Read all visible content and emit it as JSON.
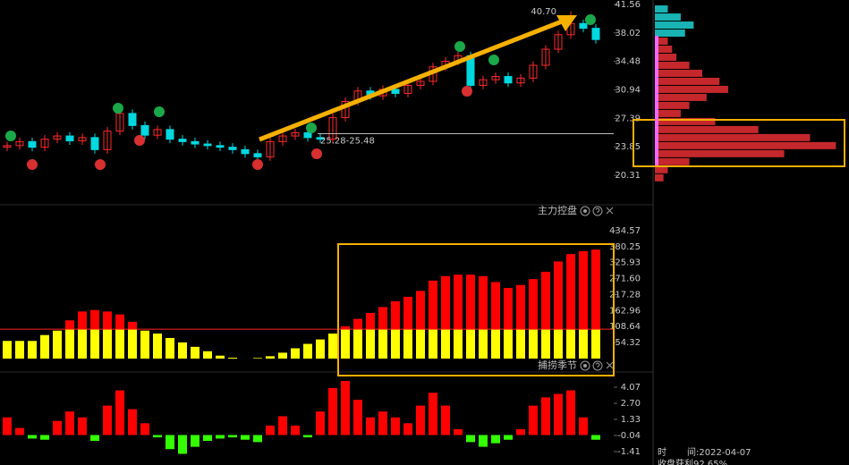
{
  "chart_data": [
    {
      "type": "candlestick",
      "open": [
        23.8,
        24.0,
        24.5,
        23.8,
        24.8,
        25.2,
        24.6,
        25.0,
        23.5,
        25.8,
        28.0,
        26.5,
        25.3,
        26.0,
        24.8,
        24.5,
        24.2,
        24.0,
        23.8,
        23.5,
        23.0,
        22.6,
        24.5,
        25.2,
        25.6,
        25.0,
        24.8,
        27.5,
        29.5,
        30.8,
        30.2,
        31.0,
        30.5,
        31.5,
        32.0,
        33.8,
        34.5,
        35.2,
        31.5,
        32.2,
        32.6,
        31.8,
        32.4,
        34.0,
        36.0,
        37.8,
        39.2,
        38.6
      ],
      "high": [
        24.5,
        25.0,
        25.0,
        25.3,
        25.7,
        25.7,
        25.5,
        25.5,
        26.3,
        28.5,
        28.5,
        27.0,
        26.5,
        26.5,
        25.3,
        25.0,
        24.7,
        24.5,
        24.3,
        24.0,
        23.5,
        25.0,
        25.7,
        26.1,
        26.1,
        25.5,
        28.0,
        30.0,
        31.3,
        31.3,
        31.5,
        31.5,
        32.0,
        32.5,
        34.3,
        35.0,
        35.7,
        35.7,
        32.7,
        33.1,
        33.1,
        32.9,
        34.5,
        36.5,
        38.3,
        40.7,
        39.7,
        39.1
      ],
      "low": [
        23.3,
        23.5,
        23.3,
        23.3,
        24.3,
        24.1,
        24.1,
        23.0,
        23.0,
        25.3,
        26.0,
        24.8,
        24.8,
        24.3,
        24.0,
        23.7,
        23.5,
        23.3,
        23.0,
        22.5,
        22.1,
        22.1,
        24.0,
        24.7,
        24.5,
        24.3,
        24.3,
        27.0,
        29.0,
        29.7,
        29.7,
        30.0,
        30.0,
        31.0,
        31.5,
        33.3,
        34.0,
        31.0,
        31.0,
        31.7,
        31.3,
        31.3,
        31.9,
        33.5,
        35.5,
        37.3,
        38.1,
        36.7
      ],
      "close": [
        24.0,
        24.5,
        23.8,
        24.8,
        25.2,
        24.6,
        25.0,
        23.5,
        25.8,
        28.0,
        26.5,
        25.3,
        26.0,
        24.8,
        24.5,
        24.2,
        24.0,
        23.8,
        23.5,
        23.0,
        22.6,
        24.5,
        25.2,
        25.6,
        25.0,
        24.8,
        27.5,
        29.5,
        30.8,
        30.2,
        31.0,
        30.5,
        31.5,
        32.0,
        33.8,
        34.5,
        35.2,
        31.5,
        32.2,
        32.6,
        31.8,
        32.4,
        34.0,
        36.0,
        37.8,
        39.2,
        38.6,
        37.2
      ],
      "up_color": "#ff2a2a",
      "down_color": "#00d8e0",
      "ylim": [
        16.75,
        42.12
      ],
      "yticks": [
        41.56,
        38.02,
        34.48,
        30.94,
        27.39,
        23.85,
        20.31
      ],
      "annotations": [
        {
          "text": "40.70",
          "value": 40.7
        },
        {
          "text": "25.28-25.48",
          "value": 25.48
        }
      ]
    },
    {
      "type": "hbar",
      "ylim": [
        16.75,
        42.12
      ],
      "xlim": [
        0,
        220
      ],
      "series": [
        {
          "color": "#19b3b3",
          "prices": [
            41,
            40,
            39,
            38
          ],
          "values": [
            15,
            30,
            45,
            35
          ]
        },
        {
          "color": "#c4282c",
          "prices": [
            37,
            36,
            35,
            34,
            33,
            32,
            31,
            30,
            29,
            28,
            27,
            26,
            25,
            24,
            23,
            22,
            21,
            20
          ],
          "values": [
            15,
            20,
            25,
            40,
            55,
            75,
            85,
            60,
            40,
            30,
            70,
            120,
            180,
            210,
            150,
            40,
            15,
            10
          ]
        }
      ]
    },
    {
      "type": "stacked_bar",
      "title": "主力控盘",
      "series": [
        {
          "color": "#ffff00",
          "values": [
            60,
            60,
            60,
            80,
            95,
            100,
            100,
            100,
            100,
            100,
            100,
            95,
            85,
            70,
            55,
            40,
            25,
            10,
            3,
            0,
            2,
            8,
            20,
            35,
            50,
            65,
            85,
            100,
            100,
            100,
            100,
            100,
            100,
            100,
            100,
            100,
            100,
            100,
            100,
            100,
            100,
            100,
            100,
            100,
            100,
            100,
            100,
            100
          ]
        },
        {
          "color": "#ff0000",
          "values": [
            0,
            0,
            0,
            0,
            0,
            30,
            60,
            65,
            60,
            50,
            25,
            0,
            0,
            0,
            0,
            0,
            0,
            0,
            0,
            0,
            0,
            0,
            0,
            0,
            0,
            0,
            0,
            10,
            35,
            55,
            75,
            95,
            110,
            130,
            165,
            180,
            185,
            185,
            180,
            160,
            140,
            150,
            170,
            195,
            230,
            255,
            265,
            270
          ]
        }
      ],
      "level": 100,
      "level_color": "#ff2020",
      "ylim": [
        0,
        474
      ],
      "yticks": [
        434.57,
        380.25,
        325.93,
        {
          "value": 271.6,
          "label": "271.60"
        },
        217.28,
        162.96,
        108.64,
        54.32
      ]
    },
    {
      "type": "signed_bar",
      "title": "捕捞季节",
      "values": [
        1.5,
        0.6,
        -0.3,
        -0.4,
        1.2,
        2.0,
        1.5,
        -0.5,
        2.5,
        3.8,
        2.2,
        1.0,
        -0.2,
        -1.2,
        -1.6,
        -1.0,
        -0.5,
        -0.3,
        -0.2,
        -0.4,
        -0.6,
        0.8,
        1.6,
        0.8,
        -0.2,
        2.0,
        4.0,
        4.6,
        3.0,
        1.5,
        2.0,
        1.5,
        1.0,
        2.5,
        3.6,
        2.5,
        0.5,
        -0.6,
        -1.0,
        -0.7,
        -0.4,
        0.5,
        2.5,
        3.2,
        3.5,
        3.8,
        1.5,
        -0.4
      ],
      "pos_color": "#ff0000",
      "neg_color": "#33ff00",
      "ylim": [
        -2.17,
        5.21
      ],
      "yticks": [
        4.07,
        {
          "value": 2.7,
          "label": "2.70"
        },
        1.33,
        -0.04,
        -1.41
      ]
    }
  ],
  "footer": {
    "time_label": "时",
    "date": "间:2022-04-07",
    "profit": "收盘获利92.65%"
  }
}
